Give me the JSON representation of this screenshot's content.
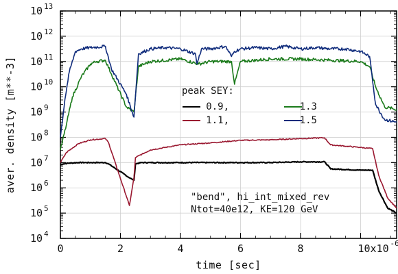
{
  "chart_data": {
    "type": "line",
    "title": "",
    "xlabel": "time [sec]",
    "ylabel": "aver. density [m**-3]",
    "x_scale": "linear",
    "y_scale": "log",
    "xlim": [
      0,
      1.12e-05
    ],
    "ylim_log10": [
      4,
      13
    ],
    "x_tick_labels": [
      "0",
      "2",
      "4",
      "6",
      "8",
      "10x10"
    ],
    "x_tick_values": [
      0,
      2e-06,
      4e-06,
      6e-06,
      8e-06,
      1e-05
    ],
    "x_exponent_label": "-6",
    "y_tick_exponents": [
      4,
      5,
      6,
      7,
      8,
      9,
      10,
      11,
      12,
      13
    ],
    "y_tick_base": "10",
    "grid": true,
    "legend": {
      "title": "peak SEY:",
      "placement": "center-right",
      "entries": [
        {
          "label": "0.9,",
          "color": "#000000"
        },
        {
          "label": "1.3",
          "color": "#1a7a1a"
        },
        {
          "label": "1.1,",
          "color": "#9a1830"
        },
        {
          "label": "1.5",
          "color": "#102c7c"
        }
      ]
    },
    "annotations": [
      "\"bend\", hi_int_mixed_rev",
      "Ntot=40e12, KE=120 GeV"
    ],
    "series": [
      {
        "name": "0.9",
        "color": "#000000",
        "x_us": [
          0.0,
          0.1,
          0.3,
          0.6,
          1.0,
          1.5,
          1.6,
          2.3,
          2.45,
          2.5,
          2.7,
          3.0,
          4.0,
          5.0,
          6.0,
          7.0,
          8.0,
          8.8,
          9.0,
          10.0,
          10.4,
          10.6,
          10.9,
          11.2
        ],
        "log10_y": [
          6.9,
          6.95,
          6.98,
          7.0,
          7.0,
          7.0,
          6.95,
          6.4,
          6.3,
          6.95,
          7.0,
          7.0,
          7.0,
          7.0,
          7.0,
          7.0,
          7.03,
          7.03,
          6.75,
          6.7,
          6.7,
          5.9,
          5.2,
          5.0
        ]
      },
      {
        "name": "1.1",
        "color": "#9a1830",
        "x_us": [
          0.0,
          0.2,
          0.6,
          1.0,
          1.5,
          1.6,
          2.3,
          2.45,
          2.5,
          3.0,
          4.0,
          5.0,
          6.0,
          7.0,
          8.0,
          8.8,
          9.0,
          10.0,
          10.4,
          10.6,
          10.9,
          11.2
        ],
        "log10_y": [
          7.0,
          7.4,
          7.75,
          7.9,
          7.95,
          7.8,
          5.3,
          6.4,
          7.2,
          7.5,
          7.7,
          7.78,
          7.88,
          7.9,
          7.95,
          7.98,
          7.7,
          7.6,
          7.55,
          6.5,
          5.6,
          5.2
        ]
      },
      {
        "name": "1.3",
        "color": "#1a7a1a",
        "x_us": [
          0.0,
          0.2,
          0.4,
          0.7,
          1.0,
          1.2,
          1.5,
          1.7,
          2.2,
          2.45,
          2.6,
          3.0,
          4.0,
          4.6,
          5.0,
          5.7,
          5.8,
          6.0,
          7.0,
          8.0,
          9.0,
          10.0,
          10.3,
          10.5,
          10.8,
          11.2
        ],
        "log10_y": [
          7.5,
          8.5,
          9.6,
          10.4,
          10.9,
          11.0,
          11.05,
          10.5,
          9.2,
          9.0,
          10.8,
          11.0,
          11.1,
          10.9,
          11.0,
          11.0,
          10.1,
          11.0,
          11.1,
          11.1,
          11.05,
          11.0,
          10.8,
          10.0,
          9.2,
          9.1
        ]
      },
      {
        "name": "1.5",
        "color": "#102c7c",
        "x_us": [
          0.0,
          0.15,
          0.3,
          0.5,
          0.7,
          1.0,
          1.5,
          1.7,
          2.2,
          2.45,
          2.6,
          3.0,
          3.5,
          4.0,
          4.5,
          4.55,
          4.7,
          5.0,
          5.5,
          5.7,
          5.8,
          6.0,
          6.5,
          7.0,
          7.5,
          8.0,
          8.5,
          9.0,
          9.5,
          10.0,
          10.3,
          10.5,
          10.8,
          11.2
        ],
        "log10_y": [
          8.0,
          9.5,
          10.6,
          11.4,
          11.5,
          11.55,
          11.6,
          10.7,
          9.7,
          8.8,
          11.3,
          11.5,
          11.55,
          11.5,
          11.3,
          10.9,
          11.5,
          11.5,
          11.6,
          11.2,
          11.4,
          11.5,
          11.55,
          11.5,
          11.6,
          11.5,
          11.55,
          11.5,
          11.5,
          11.4,
          11.2,
          9.3,
          8.7,
          8.6
        ]
      }
    ]
  }
}
